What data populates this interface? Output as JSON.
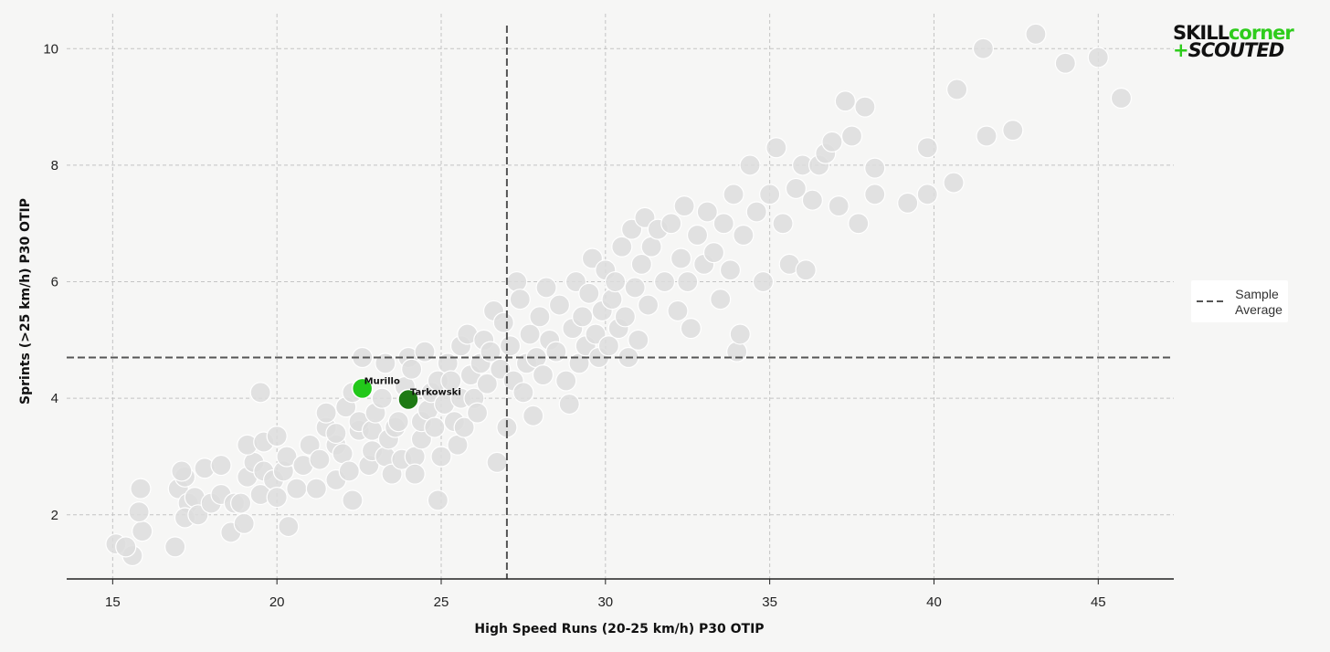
{
  "logo": {
    "part1": "SKILL",
    "part2": "corner",
    "plus": "+",
    "part3": "SCOUTED"
  },
  "legend": {
    "line1": "Sample",
    "line2": "Average"
  },
  "chart_data": {
    "type": "scatter",
    "title": "",
    "xlabel": "High Speed Runs (20-25 km/h) P30 OTIP",
    "ylabel": "Sprints (>25 km/h) P30 OTIP",
    "xlim": [
      13.6,
      47.3
    ],
    "ylim": [
      0.9,
      10.6
    ],
    "xticks": [
      15,
      20,
      25,
      30,
      35,
      40,
      45
    ],
    "yticks": [
      2,
      4,
      6,
      8,
      10
    ],
    "grid": true,
    "legend_position": "right",
    "sample_average": {
      "x": 27.0,
      "y": 4.7,
      "style": "dashed",
      "color": "#555555"
    },
    "colors": {
      "background_points": "#dddddd",
      "point_outline": "#ffffff",
      "murillo": "#22c81a",
      "tarkowski": "#1e7a14"
    },
    "highlighted": [
      {
        "name": "Murillo",
        "x": 22.6,
        "y": 4.17
      },
      {
        "name": "Tarkowski",
        "x": 24.0,
        "y": 3.98
      }
    ],
    "points": [
      [
        15.1,
        1.5
      ],
      [
        15.6,
        1.3
      ],
      [
        15.4,
        1.45
      ],
      [
        15.9,
        1.72
      ],
      [
        15.8,
        2.05
      ],
      [
        15.85,
        2.45
      ],
      [
        16.9,
        1.45
      ],
      [
        17.0,
        2.45
      ],
      [
        17.2,
        2.65
      ],
      [
        17.1,
        2.75
      ],
      [
        17.3,
        2.2
      ],
      [
        17.5,
        2.3
      ],
      [
        17.8,
        2.8
      ],
      [
        17.2,
        1.95
      ],
      [
        17.6,
        2.0
      ],
      [
        18.0,
        2.2
      ],
      [
        18.3,
        2.35
      ],
      [
        18.3,
        2.85
      ],
      [
        18.6,
        1.7
      ],
      [
        18.7,
        2.2
      ],
      [
        18.9,
        2.2
      ],
      [
        19.0,
        1.85
      ],
      [
        19.1,
        2.65
      ],
      [
        19.3,
        2.9
      ],
      [
        19.5,
        2.35
      ],
      [
        19.6,
        2.75
      ],
      [
        19.9,
        2.6
      ],
      [
        20.0,
        2.3
      ],
      [
        20.2,
        2.75
      ],
      [
        20.3,
        3.0
      ],
      [
        20.35,
        1.8
      ],
      [
        20.6,
        2.45
      ],
      [
        20.8,
        2.85
      ],
      [
        21.0,
        3.2
      ],
      [
        19.1,
        3.2
      ],
      [
        19.6,
        3.25
      ],
      [
        20.0,
        3.35
      ],
      [
        19.5,
        4.1
      ],
      [
        21.2,
        2.45
      ],
      [
        21.3,
        2.95
      ],
      [
        21.5,
        3.5
      ],
      [
        21.5,
        3.75
      ],
      [
        21.8,
        2.6
      ],
      [
        21.8,
        3.2
      ],
      [
        21.8,
        3.4
      ],
      [
        22.0,
        3.05
      ],
      [
        22.2,
        2.75
      ],
      [
        22.3,
        2.25
      ],
      [
        22.1,
        3.85
      ],
      [
        22.3,
        4.1
      ],
      [
        22.5,
        3.45
      ],
      [
        22.5,
        3.6
      ],
      [
        22.6,
        4.7
      ],
      [
        22.8,
        2.85
      ],
      [
        22.9,
        3.1
      ],
      [
        22.9,
        3.45
      ],
      [
        23.0,
        3.75
      ],
      [
        23.2,
        4.0
      ],
      [
        23.3,
        4.6
      ],
      [
        23.3,
        3.0
      ],
      [
        23.4,
        3.3
      ],
      [
        23.5,
        2.7
      ],
      [
        23.6,
        3.5
      ],
      [
        23.7,
        3.6
      ],
      [
        23.8,
        2.95
      ],
      [
        23.9,
        4.2
      ],
      [
        24.0,
        4.7
      ],
      [
        24.1,
        4.5
      ],
      [
        24.2,
        3.0
      ],
      [
        24.2,
        2.7
      ],
      [
        24.4,
        3.3
      ],
      [
        24.4,
        3.6
      ],
      [
        24.5,
        4.8
      ],
      [
        24.6,
        3.8
      ],
      [
        24.7,
        4.1
      ],
      [
        24.8,
        3.5
      ],
      [
        24.9,
        4.3
      ],
      [
        24.9,
        2.25
      ],
      [
        25.0,
        3.0
      ],
      [
        25.1,
        3.9
      ],
      [
        25.2,
        4.6
      ],
      [
        25.3,
        4.3
      ],
      [
        25.4,
        3.6
      ],
      [
        25.5,
        3.2
      ],
      [
        25.6,
        4.0
      ],
      [
        25.6,
        4.9
      ],
      [
        25.7,
        3.5
      ],
      [
        25.8,
        5.1
      ],
      [
        25.9,
        4.4
      ],
      [
        26.0,
        4.0
      ],
      [
        26.1,
        3.75
      ],
      [
        26.2,
        4.6
      ],
      [
        26.3,
        5.0
      ],
      [
        26.4,
        4.25
      ],
      [
        26.5,
        4.8
      ],
      [
        26.6,
        5.5
      ],
      [
        26.7,
        2.9
      ],
      [
        26.8,
        4.5
      ],
      [
        26.9,
        5.3
      ],
      [
        27.0,
        3.5
      ],
      [
        27.1,
        4.9
      ],
      [
        27.2,
        4.3
      ],
      [
        27.3,
        6.0
      ],
      [
        27.4,
        5.7
      ],
      [
        27.5,
        4.1
      ],
      [
        27.6,
        4.6
      ],
      [
        27.7,
        5.1
      ],
      [
        27.8,
        3.7
      ],
      [
        27.9,
        4.7
      ],
      [
        28.0,
        5.4
      ],
      [
        28.1,
        4.4
      ],
      [
        28.2,
        5.9
      ],
      [
        28.3,
        5.0
      ],
      [
        28.5,
        4.8
      ],
      [
        28.6,
        5.6
      ],
      [
        28.8,
        4.3
      ],
      [
        28.9,
        3.9
      ],
      [
        29.0,
        5.2
      ],
      [
        29.1,
        6.0
      ],
      [
        29.2,
        4.6
      ],
      [
        29.3,
        5.4
      ],
      [
        29.4,
        4.9
      ],
      [
        29.5,
        5.8
      ],
      [
        29.6,
        6.4
      ],
      [
        29.7,
        5.1
      ],
      [
        29.8,
        4.7
      ],
      [
        29.9,
        5.5
      ],
      [
        30.0,
        6.2
      ],
      [
        30.1,
        4.9
      ],
      [
        30.2,
        5.7
      ],
      [
        30.3,
        6.0
      ],
      [
        30.4,
        5.2
      ],
      [
        30.5,
        6.6
      ],
      [
        30.6,
        5.4
      ],
      [
        30.7,
        4.7
      ],
      [
        30.8,
        6.9
      ],
      [
        30.9,
        5.9
      ],
      [
        31.0,
        5.0
      ],
      [
        31.1,
        6.3
      ],
      [
        31.2,
        7.1
      ],
      [
        31.3,
        5.6
      ],
      [
        31.4,
        6.6
      ],
      [
        31.6,
        6.9
      ],
      [
        31.8,
        6.0
      ],
      [
        32.0,
        7.0
      ],
      [
        32.2,
        5.5
      ],
      [
        32.3,
        6.4
      ],
      [
        32.4,
        7.3
      ],
      [
        32.5,
        6.0
      ],
      [
        32.6,
        5.2
      ],
      [
        32.8,
        6.8
      ],
      [
        33.0,
        6.3
      ],
      [
        33.1,
        7.2
      ],
      [
        33.3,
        6.5
      ],
      [
        33.5,
        5.7
      ],
      [
        33.6,
        7.0
      ],
      [
        33.8,
        6.2
      ],
      [
        33.9,
        7.5
      ],
      [
        34.0,
        4.8
      ],
      [
        34.1,
        5.1
      ],
      [
        34.2,
        6.8
      ],
      [
        34.4,
        8.0
      ],
      [
        34.6,
        7.2
      ],
      [
        34.8,
        6.0
      ],
      [
        35.0,
        7.5
      ],
      [
        35.2,
        8.3
      ],
      [
        35.4,
        7.0
      ],
      [
        35.6,
        6.3
      ],
      [
        35.8,
        7.6
      ],
      [
        36.0,
        8.0
      ],
      [
        36.1,
        6.2
      ],
      [
        36.3,
        7.4
      ],
      [
        36.5,
        8.0
      ],
      [
        36.7,
        8.2
      ],
      [
        36.9,
        8.4
      ],
      [
        37.1,
        7.3
      ],
      [
        37.3,
        9.1
      ],
      [
        37.5,
        8.5
      ],
      [
        37.7,
        7.0
      ],
      [
        37.9,
        9.0
      ],
      [
        38.2,
        7.5
      ],
      [
        38.2,
        7.95
      ],
      [
        39.2,
        7.35
      ],
      [
        39.8,
        7.5
      ],
      [
        39.8,
        8.3
      ],
      [
        40.6,
        7.7
      ],
      [
        40.7,
        9.3
      ],
      [
        41.5,
        10.0
      ],
      [
        41.6,
        8.5
      ],
      [
        42.4,
        8.6
      ],
      [
        43.1,
        10.25
      ],
      [
        44.0,
        9.75
      ],
      [
        45.0,
        9.85
      ],
      [
        45.7,
        9.15
      ]
    ]
  }
}
